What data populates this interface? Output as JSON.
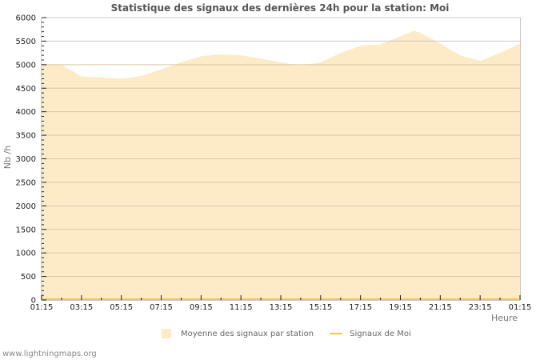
{
  "title": "Statistique des signaux des dernières 24h pour la station: Moi",
  "footer": "www.lightningmaps.org",
  "legend": {
    "area_label": "Moyenne des signaux par station",
    "line_label": "Signaux de Moi"
  },
  "colors": {
    "area_fill": "#fdebc8",
    "line": "#f2c84b",
    "grid": "#c8c8c8",
    "axis": "#c8c8c8"
  },
  "chart_data": {
    "type": "area",
    "title": "Statistique des signaux des dernières 24h pour la station: Moi",
    "xlabel": "Heure",
    "ylabel": "Nb /h",
    "ylim": [
      0,
      6000
    ],
    "yticks": [
      0,
      500,
      1000,
      1500,
      2000,
      2500,
      3000,
      3500,
      4000,
      4500,
      5000,
      5500,
      6000
    ],
    "xtick_labels": [
      "01:15",
      "03:15",
      "05:15",
      "07:15",
      "09:15",
      "11:15",
      "13:15",
      "15:15",
      "17:15",
      "19:15",
      "21:15",
      "23:15",
      "01:15"
    ],
    "grid": true,
    "legend_position": "bottom",
    "x": [
      "01:15",
      "02:15",
      "03:15",
      "04:15",
      "05:15",
      "06:15",
      "07:15",
      "08:15",
      "09:15",
      "10:15",
      "11:15",
      "12:15",
      "13:15",
      "14:15",
      "15:15",
      "16:15",
      "17:15",
      "18:15",
      "19:15",
      "19:55",
      "20:15",
      "21:15",
      "22:15",
      "23:15",
      "00:15",
      "01:15"
    ],
    "series": [
      {
        "name": "Moyenne des signaux par station",
        "values": [
          5020,
          5000,
          4750,
          4730,
          4700,
          4760,
          4900,
          5050,
          5180,
          5220,
          5200,
          5130,
          5050,
          4980,
          5050,
          5250,
          5400,
          5430,
          5600,
          5720,
          5680,
          5450,
          5200,
          5080,
          5250,
          5450
        ]
      },
      {
        "name": "Signaux de Moi",
        "values": [
          0,
          0,
          0,
          0,
          0,
          0,
          0,
          0,
          0,
          0,
          0,
          0,
          0,
          0,
          0,
          0,
          0,
          0,
          0,
          0,
          0,
          0,
          0,
          0,
          0,
          0
        ]
      }
    ]
  }
}
